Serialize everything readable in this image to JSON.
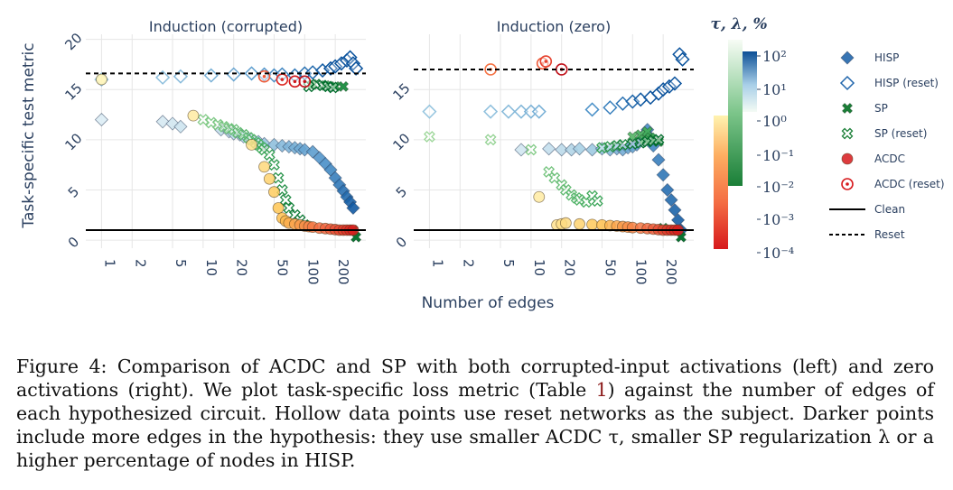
{
  "figure": {
    "ylabel": "Task-specific test metric",
    "xlabel": "Number of edges",
    "panels": [
      {
        "title": "Induction (corrupted)"
      },
      {
        "title": "Induction (zero)"
      }
    ],
    "colorbar_title": "τ, λ, %",
    "colorbar_ticks": [
      "10²",
      "10¹",
      "10⁰",
      "10⁻¹",
      "10⁻²",
      "10⁻³",
      "10⁻⁴"
    ],
    "legend": [
      {
        "label": "HISP",
        "marker": "diamond-filled"
      },
      {
        "label": "HISP (reset)",
        "marker": "diamond-open"
      },
      {
        "label": "SP",
        "marker": "x-filled"
      },
      {
        "label": "SP (reset)",
        "marker": "x-open"
      },
      {
        "label": "ACDC",
        "marker": "circle-filled"
      },
      {
        "label": "ACDC (reset)",
        "marker": "circle-open"
      },
      {
        "label": "Clean",
        "marker": "solid-line"
      },
      {
        "label": "Reset",
        "marker": "dashed-line"
      }
    ],
    "colors": {
      "hisp": "#2166ac",
      "sp": "#1a7f37",
      "acdc": "#d7191c",
      "axis_text": "#2a3f5f"
    }
  },
  "caption": {
    "p1": "Figure 4:  Comparison of ACDC and SP with both corrupted-input activations (left) and zero activations (right).  We plot task-specific loss metric (Table ",
    "ref": "1",
    "p2": ") against the number of edges of each hypothesized circuit. Hollow data points use reset networks as the subject. Darker points include more edges in the hypothesis: they use smaller ACDC τ, smaller SP regularization λ or a higher percentage of nodes in HISP."
  },
  "chart_data": [
    {
      "type": "scatter",
      "title": "Induction (corrupted)",
      "xlabel": "Number of edges",
      "ylabel": "Task-specific test metric",
      "xscale": "log",
      "xticks": [
        1,
        2,
        5,
        10,
        20,
        50,
        100,
        200
      ],
      "yticks": [
        0,
        5,
        10,
        15,
        20
      ],
      "xlim": [
        0.7,
        400
      ],
      "ylim": [
        -0.8,
        20.5
      ],
      "clean_line": 1.0,
      "reset_line": 16.6,
      "series": [
        {
          "name": "HISP",
          "marker": "diamond",
          "filled": true,
          "x": [
            1,
            4,
            5,
            6,
            15,
            18,
            20,
            23,
            25,
            28,
            30,
            35,
            40,
            50,
            60,
            70,
            80,
            90,
            100,
            120,
            140,
            160,
            180,
            200,
            220,
            240,
            260,
            280,
            300
          ],
          "y": [
            12,
            11.8,
            11.6,
            11.3,
            11.0,
            10.8,
            10.6,
            10.5,
            10.3,
            10.1,
            10.0,
            9.8,
            9.6,
            9.5,
            9.4,
            9.3,
            9.2,
            9.1,
            9.0,
            8.8,
            8.2,
            7.6,
            7.0,
            6.2,
            5.5,
            4.9,
            4.3,
            3.8,
            3.2
          ],
          "v": [
            0.5,
            0.8,
            1.0,
            1.2,
            1.6,
            1.8,
            2.0,
            2.2,
            2.4,
            2.6,
            2.8,
            3.1,
            3.4,
            3.9,
            4.3,
            4.6,
            4.9,
            5.2,
            5.5,
            5.9,
            6.3,
            6.7,
            7.1,
            7.5,
            7.9,
            8.3,
            8.7,
            9.1,
            9.5
          ]
        },
        {
          "name": "HISP (reset)",
          "marker": "diamond",
          "filled": false,
          "x": [
            1,
            4,
            6,
            12,
            20,
            30,
            40,
            50,
            60,
            80,
            100,
            120,
            150,
            180,
            200,
            230,
            260,
            280,
            300,
            320
          ],
          "y": [
            16.0,
            16.2,
            16.3,
            16.4,
            16.5,
            16.6,
            16.5,
            16.4,
            16.5,
            16.4,
            16.6,
            16.7,
            16.9,
            17.1,
            17.3,
            17.6,
            17.9,
            18.2,
            17.6,
            17.1
          ],
          "v": [
            0.3,
            0.7,
            1.0,
            1.5,
            2.0,
            2.6,
            3.1,
            3.5,
            3.9,
            4.5,
            5.0,
            5.5,
            6.1,
            6.7,
            7.1,
            7.6,
            8.1,
            8.6,
            9.0,
            9.5
          ]
        },
        {
          "name": "SP",
          "marker": "x",
          "filled": true,
          "x": [
            120,
            160,
            200,
            240,
            300,
            320
          ],
          "y": [
            15.5,
            15.4,
            15.3,
            15.3,
            1.0,
            0.3
          ],
          "v": [
            5,
            6,
            7,
            8,
            9,
            9.5
          ]
        },
        {
          "name": "SP (reset)",
          "marker": "x",
          "filled": false,
          "x": [
            10,
            12,
            14,
            16,
            18,
            20,
            22,
            25,
            28,
            30,
            33,
            35,
            38,
            40,
            45,
            50,
            55,
            60,
            65,
            70,
            80,
            90,
            100,
            110,
            130,
            150,
            170,
            190
          ],
          "y": [
            12.0,
            11.7,
            11.5,
            11.3,
            11.1,
            11.0,
            10.7,
            10.5,
            10.2,
            10.0,
            9.7,
            9.5,
            9.2,
            9.0,
            8.5,
            7.5,
            6.2,
            5.0,
            4.0,
            3.2,
            2.5,
            2.0,
            1.5,
            15.3,
            15.5,
            15.4,
            15.3,
            15.2
          ],
          "v": [
            1,
            1.2,
            1.4,
            1.6,
            1.8,
            2,
            2.2,
            2.4,
            2.6,
            2.8,
            3,
            3.2,
            3.4,
            3.6,
            3.9,
            4.2,
            4.5,
            4.8,
            5.1,
            5.4,
            5.8,
            6.1,
            6.4,
            6.8,
            7.2,
            7.6,
            8.0,
            8.4
          ]
        },
        {
          "name": "ACDC",
          "marker": "circle",
          "filled": true,
          "x": [
            1,
            8,
            30,
            40,
            45,
            50,
            55,
            60,
            65,
            70,
            80,
            90,
            100,
            110,
            120,
            140,
            160,
            180,
            200,
            220,
            240,
            260,
            280,
            300
          ],
          "y": [
            16.0,
            12.4,
            9.5,
            7.3,
            6.1,
            4.8,
            3.2,
            2.2,
            1.9,
            1.7,
            1.6,
            1.5,
            1.4,
            1.35,
            1.3,
            1.2,
            1.15,
            1.1,
            1.05,
            1.0,
            1.0,
            1.0,
            1.0,
            1.0
          ],
          "v": [
            0.2,
            0.8,
            1.5,
            2.0,
            2.4,
            2.8,
            3.2,
            3.5,
            3.8,
            4.2,
            4.6,
            5.0,
            5.4,
            5.8,
            6.2,
            6.6,
            7.0,
            7.4,
            7.8,
            8.2,
            8.6,
            9.0,
            9.4,
            9.8
          ]
        },
        {
          "name": "ACDC (reset)",
          "marker": "circle",
          "filled": false,
          "x": [
            40,
            60,
            80,
            100
          ],
          "y": [
            16.3,
            16.0,
            15.8,
            15.8
          ],
          "v": [
            4,
            6,
            7.5,
            9.8
          ]
        }
      ]
    },
    {
      "type": "scatter",
      "title": "Induction (zero)",
      "xlabel": "Number of edges",
      "ylabel": "Task-specific test metric",
      "xscale": "log",
      "xticks": [
        1,
        2,
        5,
        10,
        20,
        50,
        100,
        200
      ],
      "yticks": [
        0,
        5,
        10,
        15
      ],
      "xlim": [
        0.7,
        400
      ],
      "ylim": [
        -0.8,
        20.5
      ],
      "clean_line": 1.0,
      "reset_line": 17.0,
      "series": [
        {
          "name": "HISP",
          "marker": "diamond",
          "filled": true,
          "x": [
            8,
            15,
            20,
            25,
            30,
            40,
            50,
            60,
            70,
            80,
            90,
            100,
            110,
            120,
            130,
            140,
            150,
            160,
            180,
            200,
            220,
            240,
            260,
            280,
            300
          ],
          "y": [
            9.0,
            9.1,
            9.0,
            9.0,
            9.1,
            9.0,
            9.1,
            9.0,
            9.1,
            9.0,
            9.2,
            9.3,
            9.5,
            10.0,
            10.5,
            11.0,
            10.2,
            9.4,
            8.0,
            6.5,
            5.0,
            4.0,
            3.0,
            2.0,
            1.0
          ],
          "v": [
            1,
            1.6,
            2,
            2.4,
            2.8,
            3.3,
            3.8,
            4.2,
            4.6,
            5,
            5.3,
            5.6,
            5.9,
            6.2,
            6.5,
            6.8,
            7.0,
            7.2,
            7.6,
            8.0,
            8.4,
            8.7,
            9.0,
            9.3,
            9.6
          ]
        },
        {
          "name": "HISP (reset)",
          "marker": "diamond",
          "filled": false,
          "x": [
            1,
            4,
            6,
            8,
            10,
            12,
            40,
            60,
            80,
            100,
            120,
            150,
            180,
            200,
            230,
            260,
            290,
            310
          ],
          "y": [
            12.8,
            12.8,
            12.8,
            12.8,
            12.8,
            12.8,
            13.0,
            13.2,
            13.6,
            13.8,
            14.0,
            14.2,
            14.6,
            15.0,
            15.3,
            15.6,
            18.5,
            18.0
          ],
          "v": [
            0.3,
            0.6,
            0.9,
            1.1,
            1.3,
            1.5,
            3.3,
            4.2,
            5,
            5.6,
            6.2,
            6.8,
            7.4,
            7.9,
            8.4,
            8.9,
            9.4,
            9.8
          ]
        },
        {
          "name": "SP",
          "marker": "x",
          "filled": true,
          "x": [
            100,
            120,
            130,
            140,
            150,
            160,
            180,
            200,
            250,
            300
          ],
          "y": [
            10.3,
            10.5,
            10.0,
            10.8,
            10.2,
            10.0,
            9.8,
            1.2,
            1.0,
            0.3
          ],
          "v": [
            5.5,
            6,
            6.3,
            6.6,
            6.9,
            7.2,
            7.6,
            8.2,
            8.9,
            9.6
          ]
        },
        {
          "name": "SP (reset)",
          "marker": "x",
          "filled": false,
          "x": [
            1,
            4,
            10,
            15,
            17,
            20,
            22,
            25,
            28,
            30,
            35,
            40,
            45,
            50,
            60,
            70,
            80,
            100,
            120,
            140,
            160,
            180
          ],
          "y": [
            10.3,
            10.0,
            9.0,
            6.8,
            6.2,
            5.5,
            5.0,
            4.5,
            4.2,
            4.0,
            3.8,
            4.4,
            3.9,
            9.2,
            9.3,
            9.4,
            9.5,
            9.6,
            9.7,
            9.8,
            9.9,
            10.0
          ],
          "v": [
            0.2,
            0.5,
            1.0,
            1.6,
            1.8,
            2,
            2.2,
            2.4,
            2.6,
            2.8,
            3.1,
            3.4,
            3.7,
            4.0,
            4.5,
            5.0,
            5.4,
            6.0,
            6.5,
            7.0,
            7.5,
            8.0
          ]
        },
        {
          "name": "ACDC",
          "marker": "circle",
          "filled": true,
          "x": [
            12,
            18,
            20,
            22,
            30,
            40,
            50,
            60,
            70,
            80,
            90,
            100,
            120,
            140,
            160,
            180,
            200,
            220,
            240,
            260,
            280
          ],
          "y": [
            4.3,
            1.5,
            1.6,
            1.7,
            1.6,
            1.55,
            1.5,
            1.45,
            1.4,
            1.35,
            1.3,
            1.25,
            1.2,
            1.15,
            1.1,
            1.05,
            1.0,
            1.0,
            1.0,
            1.0,
            1.0
          ],
          "v": [
            0.8,
            1.4,
            1.6,
            1.8,
            2.4,
            3.0,
            3.5,
            4.0,
            4.5,
            5.0,
            5.4,
            5.8,
            6.3,
            6.8,
            7.3,
            7.8,
            8.3,
            8.7,
            9.1,
            9.5,
            9.8
          ]
        },
        {
          "name": "ACDC (reset)",
          "marker": "circle",
          "filled": false,
          "x": [
            4,
            13,
            14,
            20
          ],
          "y": [
            17.0,
            17.6,
            17.8,
            17.0
          ],
          "v": [
            3,
            4,
            5,
            9.8
          ]
        }
      ]
    }
  ]
}
